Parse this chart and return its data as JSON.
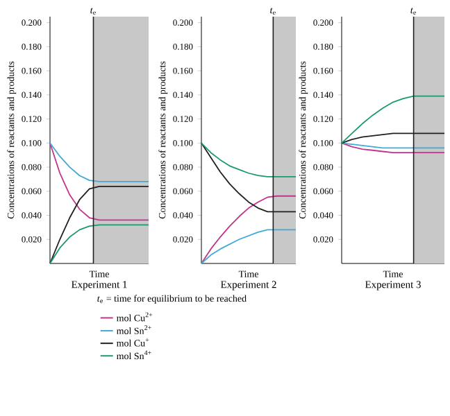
{
  "chart_data": [
    {
      "type": "line",
      "title": "Experiment 1",
      "xlabel": "Time",
      "ylabel": "Concentrations of reactants and products",
      "categories": [
        null,
        null,
        null,
        null,
        null,
        null,
        null,
        null,
        null,
        null,
        null
      ],
      "series": [
        {
          "name": "mol Cu$^{2+}$",
          "color": "#c2338a",
          "values": [
            0.1,
            0.075,
            0.057,
            0.045,
            0.038,
            0.036,
            0.036,
            0.036,
            0.036,
            0.036,
            0.036
          ]
        },
        {
          "name": "mol Sn$^{2+}$",
          "color": "#3fa9d8",
          "values": [
            0.1,
            0.089,
            0.08,
            0.073,
            0.069,
            0.068,
            0.068,
            0.068,
            0.068,
            0.068,
            0.068
          ]
        },
        {
          "name": "mol Cu$^{+}$",
          "color": "#231f20",
          "values": [
            0,
            0.02,
            0.038,
            0.053,
            0.062,
            0.064,
            0.064,
            0.064,
            0.064,
            0.064,
            0.064
          ]
        },
        {
          "name": "mol Sn$^{4+}$",
          "color": "#1a9a6c",
          "values": [
            0,
            0.013,
            0.022,
            0.028,
            0.031,
            0.032,
            0.032,
            0.032,
            0.032,
            0.032,
            0.032
          ]
        }
      ],
      "ylim": [
        0,
        0.205
      ],
      "yticks": [
        {
          "value": 0.02,
          "label": "0.020"
        },
        {
          "value": 0.04,
          "label": "0.040"
        },
        {
          "value": 0.06,
          "label": "0.060"
        },
        {
          "value": 0.08,
          "label": "0.080"
        },
        {
          "value": 0.1,
          "label": "0.100"
        },
        {
          "value": 0.12,
          "label": "0.120"
        },
        {
          "value": 0.14,
          "label": "0.140"
        },
        {
          "value": 0.16,
          "label": "0.160"
        },
        {
          "value": 0.18,
          "label": "0.180"
        },
        {
          "value": 0.2,
          "label": "0.200"
        }
      ],
      "annotations": [
        "*t*$_{e}$",
        "*t*$_{e}$ = time for equilibrium to be reached"
      ],
      "legend": "bottom",
      "tick_labels": "y"
    },
    {
      "type": "line",
      "title": "Experiment 2",
      "xlabel": "Time",
      "ylabel": "Concentrations of reactants and products",
      "categories": [
        null,
        null,
        null,
        null,
        null,
        null,
        null,
        null,
        null,
        null,
        null
      ],
      "series": [
        {
          "color": "#c2338a",
          "values": [
            0,
            0.012,
            0.022,
            0.031,
            0.039,
            0.046,
            0.051,
            0.055,
            0.056,
            0.056,
            0.056
          ]
        },
        {
          "color": "#3fa9d8",
          "values": [
            0,
            0.007,
            0.012,
            0.016,
            0.02,
            0.023,
            0.026,
            0.028,
            0.028,
            0.028,
            0.028
          ]
        },
        {
          "color": "#231f20",
          "values": [
            0.1,
            0.088,
            0.076,
            0.066,
            0.058,
            0.051,
            0.046,
            0.043,
            0.043,
            0.043,
            0.043
          ]
        },
        {
          "color": "#1a9a6c",
          "values": [
            0.1,
            0.092,
            0.086,
            0.081,
            0.078,
            0.075,
            0.073,
            0.072,
            0.072,
            0.072,
            0.072
          ]
        }
      ],
      "ylim": [
        0,
        0.205
      ],
      "yticks": [
        {
          "value": 0.02,
          "label": "0.020"
        },
        {
          "value": 0.04,
          "label": "0.040"
        },
        {
          "value": 0.06,
          "label": "0.060"
        },
        {
          "value": 0.08,
          "label": "0.080"
        },
        {
          "value": 0.1,
          "label": "0.100"
        },
        {
          "value": 0.12,
          "label": "0.120"
        },
        {
          "value": 0.14,
          "label": "0.140"
        },
        {
          "value": 0.16,
          "label": "0.160"
        },
        {
          "value": 0.18,
          "label": "0.180"
        },
        {
          "value": 0.2,
          "label": "0.200"
        }
      ],
      "annotations": [
        "*t*$_{e}$"
      ],
      "tick_labels": "y"
    },
    {
      "type": "line",
      "title": "Experiment 3",
      "xlabel": "Time",
      "ylabel": "Concentrations of reactants and products",
      "categories": [
        null,
        null,
        null,
        null,
        null,
        null,
        null,
        null,
        null,
        null,
        null
      ],
      "series": [
        {
          "color": "#c2338a",
          "values": [
            0.1,
            0.097,
            0.095,
            0.094,
            0.093,
            0.092,
            0.092,
            0.092,
            0.092,
            0.092,
            0.092
          ]
        },
        {
          "color": "#3fa9d8",
          "values": [
            0.1,
            0.099,
            0.098,
            0.097,
            0.096,
            0.096,
            0.096,
            0.096,
            0.096,
            0.096,
            0.096
          ]
        },
        {
          "color": "#231f20",
          "values": [
            0.1,
            0.103,
            0.105,
            0.106,
            0.107,
            0.108,
            0.108,
            0.108,
            0.108,
            0.108,
            0.108
          ]
        },
        {
          "color": "#1a9a6c",
          "values": [
            0.1,
            0.108,
            0.116,
            0.123,
            0.129,
            0.134,
            0.137,
            0.139,
            0.139,
            0.139,
            0.139
          ]
        }
      ],
      "ylim": [
        0,
        0.205
      ],
      "yticks": [
        {
          "value": 0.02,
          "label": "0.020"
        },
        {
          "value": 0.04,
          "label": "0.040"
        },
        {
          "value": 0.06,
          "label": "0.060"
        },
        {
          "value": 0.08,
          "label": "0.080"
        },
        {
          "value": 0.1,
          "label": "0.100"
        },
        {
          "value": 0.12,
          "label": "0.120"
        },
        {
          "value": 0.14,
          "label": "0.140"
        },
        {
          "value": 0.16,
          "label": "0.160"
        },
        {
          "value": 0.18,
          "label": "0.180"
        },
        {
          "value": 0.2,
          "label": "0.200"
        }
      ],
      "annotations": [
        "*t*$_{e}$"
      ],
      "tick_labels": "y"
    }
  ]
}
